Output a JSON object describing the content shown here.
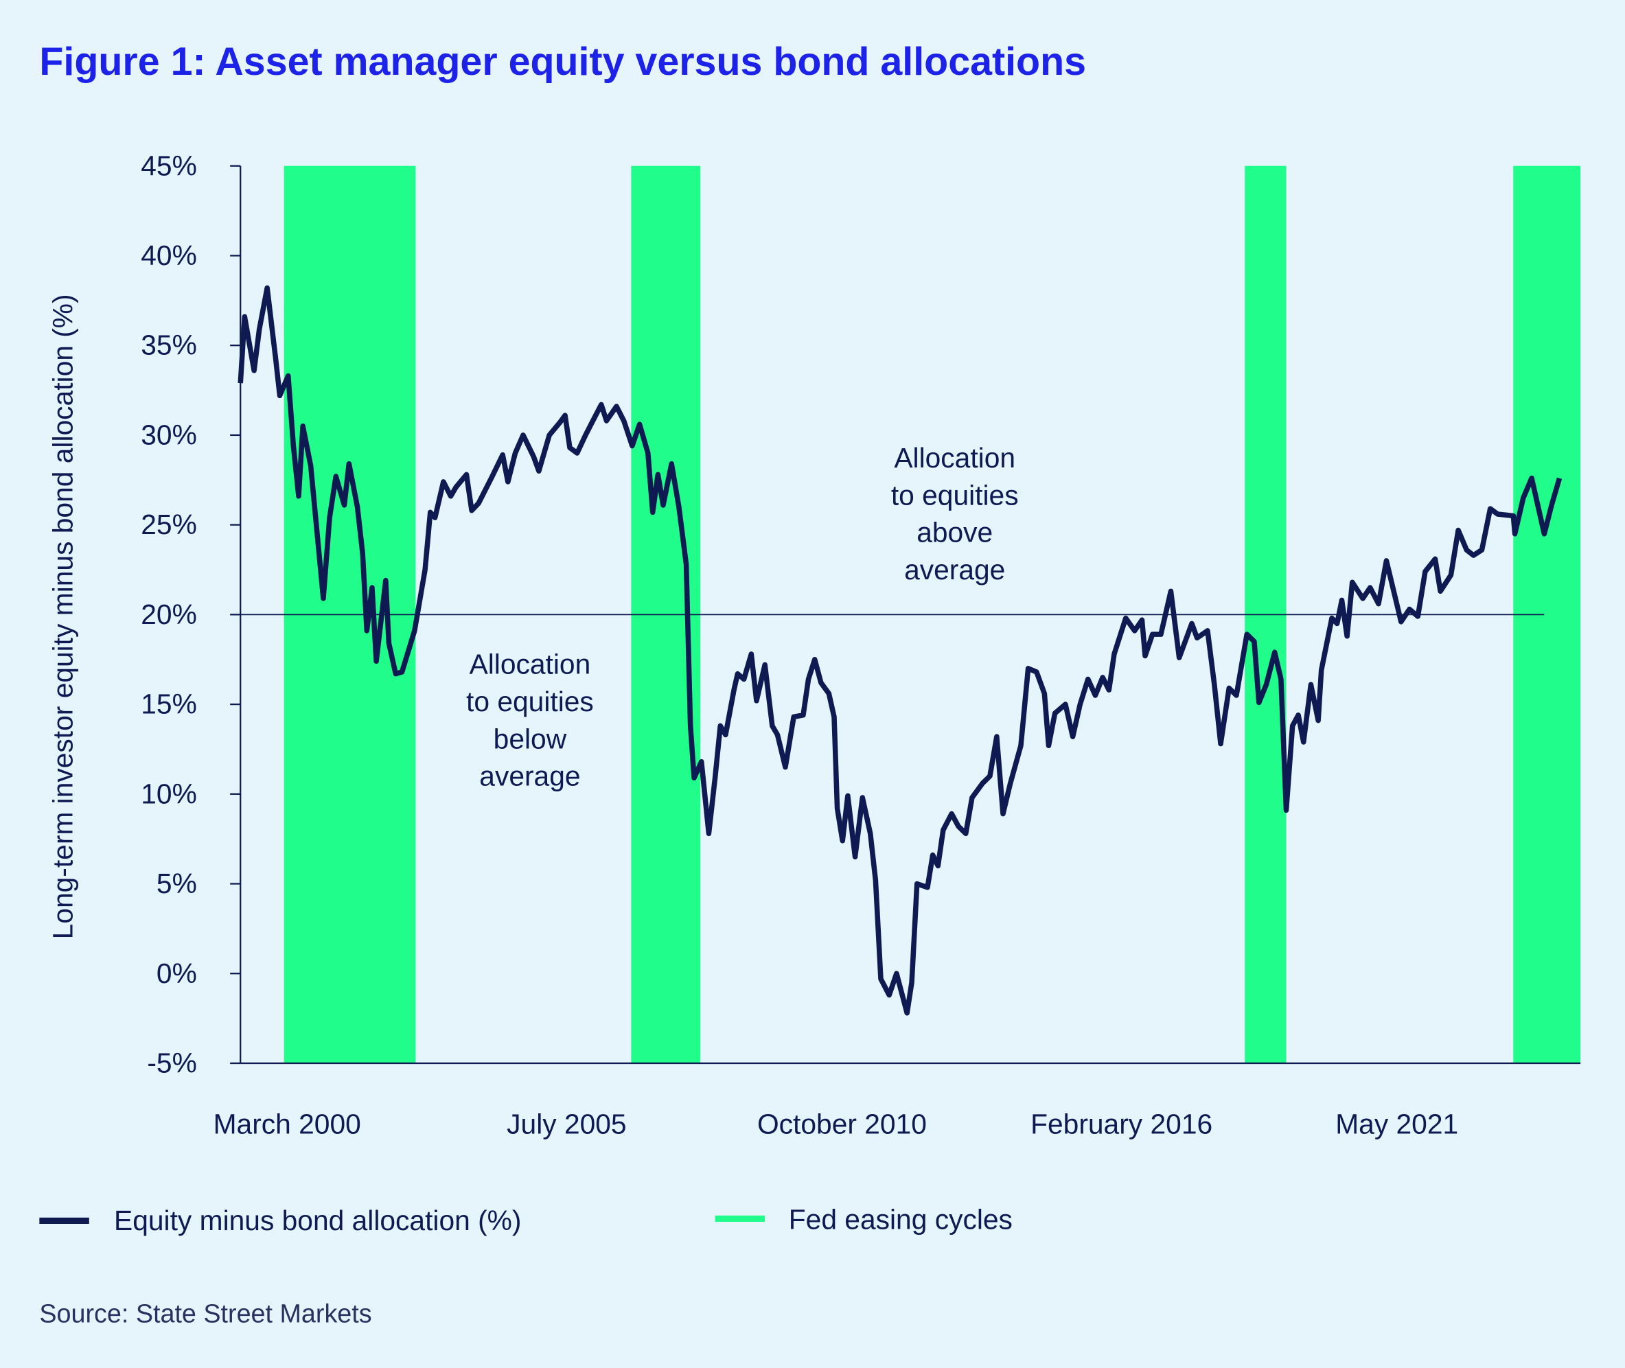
{
  "chart_data": {
    "type": "line",
    "title": "Figure 1: Asset manager equity versus bond allocations",
    "y_label": "Long-term investor equity minus bond allocation (%)",
    "source": "Source: State Street Markets",
    "xlim": [
      1999.28,
      2024.83
    ],
    "xticks": [
      {
        "value": 2000.17,
        "label": "March 2000"
      },
      {
        "value": 2005.5,
        "label": "July 2005"
      },
      {
        "value": 2010.75,
        "label": "October 2010"
      },
      {
        "value": 2016.08,
        "label": "February 2016"
      },
      {
        "value": 2021.33,
        "label": "May 2021"
      }
    ],
    "ylim": [
      -5,
      45
    ],
    "yticks": [
      {
        "value": -5,
        "label": "-5%"
      },
      {
        "value": 0,
        "label": "0%"
      },
      {
        "value": 5,
        "label": "5%"
      },
      {
        "value": 10,
        "label": "10%"
      },
      {
        "value": 15,
        "label": "15%"
      },
      {
        "value": 20,
        "label": "20%"
      },
      {
        "value": 25,
        "label": "25%"
      },
      {
        "value": 30,
        "label": "30%"
      },
      {
        "value": 35,
        "label": "35%"
      },
      {
        "value": 40,
        "label": "40%"
      },
      {
        "value": 45,
        "label": "45%"
      }
    ],
    "reference_line": 20,
    "shaded_regions": {
      "name": "Fed easing cycles",
      "color": "#21fd8a",
      "ranges": [
        [
          2000.11,
          2002.62
        ],
        [
          2006.73,
          2008.05
        ],
        [
          2018.43,
          2019.22
        ],
        [
          2023.55,
          2024.83
        ]
      ]
    },
    "annotations": [
      {
        "lines": [
          "Allocation",
          "to equities",
          "above",
          "average"
        ],
        "x": 2012.9,
        "y": 28.2
      },
      {
        "lines": [
          "Allocation",
          "to equities",
          "below",
          "average"
        ],
        "x": 2004.8,
        "y": 16.7
      }
    ],
    "x": [
      1999.28,
      1999.36,
      1999.54,
      1999.64,
      1999.79,
      1999.95,
      2000.03,
      2000.19,
      2000.29,
      2000.39,
      2000.47,
      2000.62,
      2000.86,
      2000.98,
      2001.1,
      2001.26,
      2001.35,
      2001.51,
      2001.61,
      2001.69,
      2001.79,
      2001.87,
      2002.05,
      2002.11,
      2002.24,
      2002.36,
      2002.6,
      2002.8,
      2002.9,
      2002.99,
      2003.15,
      2003.29,
      2003.39,
      2003.59,
      2003.69,
      2003.82,
      2004.08,
      2004.28,
      2004.38,
      2004.52,
      2004.67,
      2004.87,
      2004.97,
      2005.17,
      2005.37,
      2005.47,
      2005.56,
      2005.7,
      2005.86,
      2006.0,
      2006.16,
      2006.26,
      2006.45,
      2006.59,
      2006.75,
      2006.89,
      2007.05,
      2007.14,
      2007.24,
      2007.34,
      2007.5,
      2007.64,
      2007.78,
      2007.86,
      2007.93,
      2008.07,
      2008.21,
      2008.33,
      2008.43,
      2008.53,
      2008.69,
      2008.76,
      2008.88,
      2009.02,
      2009.12,
      2009.28,
      2009.42,
      2009.52,
      2009.67,
      2009.83,
      2010.01,
      2010.11,
      2010.23,
      2010.35,
      2010.5,
      2010.6,
      2010.66,
      2010.76,
      2010.86,
      2011.0,
      2011.14,
      2011.29,
      2011.39,
      2011.49,
      2011.65,
      2011.79,
      2011.99,
      2012.08,
      2012.18,
      2012.38,
      2012.48,
      2012.58,
      2012.68,
      2012.84,
      2012.97,
      2013.11,
      2013.23,
      2013.43,
      2013.57,
      2013.7,
      2013.82,
      2013.96,
      2014.16,
      2014.3,
      2014.46,
      2014.61,
      2014.69,
      2014.81,
      2015.01,
      2015.15,
      2015.29,
      2015.44,
      2015.58,
      2015.72,
      2015.84,
      2015.94,
      2016.16,
      2016.33,
      2016.47,
      2016.53,
      2016.67,
      2016.83,
      2017.02,
      2017.18,
      2017.42,
      2017.52,
      2017.72,
      2017.85,
      2017.97,
      2018.13,
      2018.27,
      2018.47,
      2018.61,
      2018.7,
      2018.84,
      2019.0,
      2019.12,
      2019.22,
      2019.34,
      2019.45,
      2019.55,
      2019.69,
      2019.83,
      2019.89,
      2020.09,
      2020.19,
      2020.28,
      2020.38,
      2020.48,
      2020.68,
      2020.82,
      2020.98,
      2021.13,
      2021.41,
      2021.57,
      2021.73,
      2021.87,
      2022.06,
      2022.16,
      2022.36,
      2022.5,
      2022.66,
      2022.79,
      2022.95,
      2023.11,
      2023.25,
      2023.55,
      2023.58,
      2023.74,
      2023.9,
      2024.14,
      2024.28,
      2024.43
    ],
    "series": [
      {
        "name": "Equity minus bond allocation (%)",
        "color": "#101a52",
        "values": [
          32.9,
          36.6,
          33.6,
          35.9,
          38.2,
          34.3,
          32.2,
          33.3,
          29.4,
          26.6,
          30.5,
          28.3,
          20.9,
          25.4,
          27.7,
          26.1,
          28.4,
          26,
          23.4,
          19.1,
          21.5,
          17.4,
          21.9,
          18.4,
          16.7,
          16.8,
          19.1,
          22.5,
          25.7,
          25.4,
          27.4,
          26.6,
          27.1,
          27.8,
          25.8,
          26.2,
          27.7,
          28.9,
          27.4,
          29,
          30,
          28.8,
          28,
          30,
          30.7,
          31.1,
          29.3,
          29,
          30,
          30.8,
          31.7,
          30.8,
          31.6,
          30.8,
          29.4,
          30.6,
          29,
          25.7,
          27.8,
          26.1,
          28.4,
          26,
          22.8,
          13.8,
          10.9,
          11.8,
          7.8,
          10.9,
          13.8,
          13.3,
          15.8,
          16.7,
          16.4,
          17.8,
          15.2,
          17.2,
          13.8,
          13.3,
          11.5,
          14.3,
          14.4,
          16.4,
          17.5,
          16.2,
          15.6,
          14.3,
          9.2,
          7.4,
          9.9,
          6.5,
          9.8,
          7.8,
          5.2,
          -0.3,
          -1.2,
          0,
          -2.2,
          -0.5,
          5,
          4.8,
          6.6,
          6,
          8,
          8.9,
          8.2,
          7.8,
          9.8,
          10.6,
          11,
          13.2,
          8.9,
          10.6,
          12.7,
          17,
          16.8,
          15.6,
          12.7,
          14.5,
          15,
          13.2,
          15,
          16.4,
          15.5,
          16.5,
          15.8,
          17.8,
          19.8,
          19.1,
          19.7,
          17.7,
          18.9,
          18.9,
          21.3,
          17.6,
          19.5,
          18.7,
          19.1,
          16.1,
          12.8,
          15.9,
          15.5,
          18.9,
          18.5,
          15.1,
          16.1,
          17.9,
          16.4,
          9.1,
          13.8,
          14.4,
          12.9,
          16.1,
          14.1,
          16.9,
          19.8,
          19.5,
          20.8,
          18.8,
          21.8,
          20.9,
          21.5,
          20.6,
          23,
          19.6,
          20.3,
          19.9,
          22.4,
          23.1,
          21.3,
          22.2,
          24.7,
          23.6,
          23.3,
          23.6,
          25.9,
          25.6,
          25.5,
          24.5,
          26.5,
          27.6,
          24.5,
          26.1,
          27.6
        ]
      }
    ]
  }
}
